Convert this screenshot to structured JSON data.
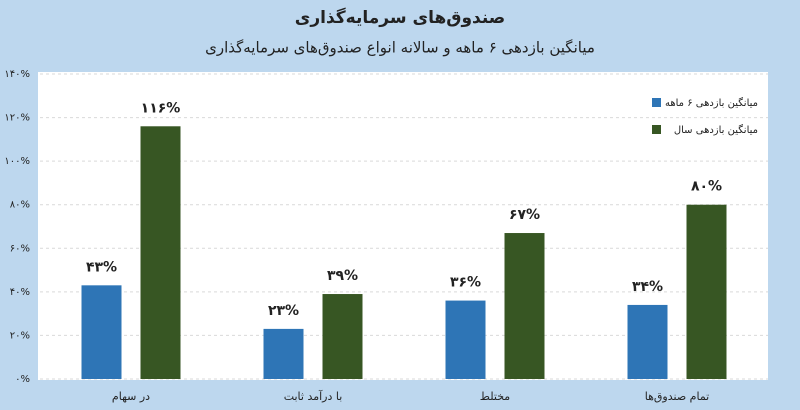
{
  "chart_data": {
    "type": "bar",
    "title": "صندوق‌های سرمایه‌گذاری",
    "subtitle": "میانگین بازدهی ۶ ماهه و سالانه انواع صندوق‌های سرمایه‌گذاری",
    "categories": [
      "در سهام",
      "با درآمد ثابت",
      "مختلط",
      "تمام صندوق‌ها"
    ],
    "series": [
      {
        "name": "میانگین بازدهی ۶ ماهه",
        "color": "#2e75b6",
        "values": [
          43,
          23,
          36,
          34
        ],
        "value_labels": [
          "۴۳%",
          "۲۳%",
          "۳۶%",
          "۳۴%"
        ]
      },
      {
        "name": "میانگین بازدهی سال",
        "color": "#375623",
        "values": [
          116,
          39,
          67,
          80
        ],
        "value_labels": [
          "۱۱۶%",
          "۳۹%",
          "۶۷%",
          "۸۰%"
        ]
      }
    ],
    "ylim": [
      0,
      140
    ],
    "yticks": [
      {
        "value": 0,
        "label": "۰%"
      },
      {
        "value": 20,
        "label": "۲۰%"
      },
      {
        "value": 40,
        "label": "۴۰%"
      },
      {
        "value": 60,
        "label": "۶۰%"
      },
      {
        "value": 80,
        "label": "۸۰%"
      },
      {
        "value": 100,
        "label": "۱۰۰%"
      },
      {
        "value": 120,
        "label": "۱۲۰%"
      },
      {
        "value": 140,
        "label": "۱۴۰%"
      }
    ],
    "grid": true,
    "legend": "top-right"
  }
}
